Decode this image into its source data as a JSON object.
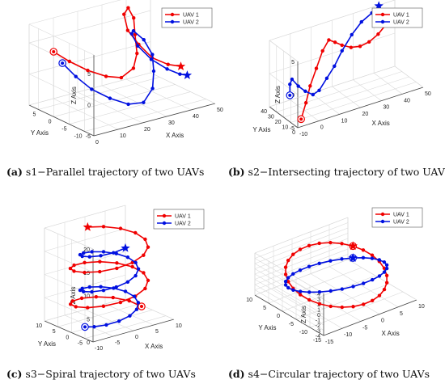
{
  "colors": {
    "uav1": "#f00000",
    "uav2": "#0010e0",
    "grid": "#d9d9d9",
    "axis": "#444444"
  },
  "captions": [
    {
      "letter": "(a)",
      "text": " s1−Parallel trajectory of two UAVs"
    },
    {
      "letter": "(b)",
      "text": " s2−Intersecting trajectory of two UAVs"
    },
    {
      "letter": "(c)",
      "text": " s3−Spiral trajectory of two UAVs"
    },
    {
      "letter": "(d)",
      "text": " s4−Circular trajectory of two UAVs"
    }
  ],
  "chart_data": [
    {
      "id": "s1",
      "type": "line",
      "projection": "3d",
      "xlabel": "X Axis",
      "ylabel": "Y Axis",
      "zlabel": "Z Axis",
      "x_ticks": [
        0,
        10,
        20,
        30,
        40,
        50
      ],
      "y_ticks": [
        -10,
        -5,
        0,
        5
      ],
      "z_ticks": [
        -5,
        0,
        5
      ],
      "xlim": [
        0,
        50
      ],
      "ylim": [
        -13,
        8
      ],
      "zlim": [
        -5,
        8
      ],
      "grid": true,
      "legend": "top-right",
      "series": [
        {
          "name": "UAV 1",
          "color": "#f00000",
          "start_marker": "circle",
          "end_marker": "star",
          "points": [
            [
              5,
              4,
              4
            ],
            [
              9,
              2,
              2.5
            ],
            [
              14,
              0,
              1
            ],
            [
              19,
              -2,
              0
            ],
            [
              24,
              -3,
              -0.5
            ],
            [
              29,
              -3,
              0.5
            ],
            [
              33,
              -1,
              2
            ],
            [
              36,
              2,
              4
            ],
            [
              38,
              4,
              6
            ],
            [
              37,
              5,
              7.5
            ],
            [
              34,
              4,
              7
            ],
            [
              33,
              2,
              5
            ],
            [
              35,
              0,
              3
            ],
            [
              38,
              -2,
              1
            ],
            [
              42,
              -4,
              0
            ],
            [
              46,
              -5,
              -0.5
            ]
          ]
        },
        {
          "name": "UAV 2",
          "color": "#0010e0",
          "start_marker": "circle",
          "end_marker": "star",
          "points": [
            [
              1,
              -2,
              4
            ],
            [
              4,
              -4,
              2
            ],
            [
              8,
              -6,
              0
            ],
            [
              13,
              -8,
              -1.5
            ],
            [
              18,
              -10,
              -2.5
            ],
            [
              23,
              -11,
              -2.5
            ],
            [
              28,
              -10,
              -1
            ],
            [
              31,
              -8,
              1
            ],
            [
              33,
              -6,
              3
            ],
            [
              32,
              -4,
              5
            ],
            [
              29,
              -3,
              6.5
            ],
            [
              27,
              -4,
              6.5
            ],
            [
              27,
              -6,
              5
            ],
            [
              30,
              -8,
              3
            ],
            [
              34,
              -10,
              1.5
            ],
            [
              38,
              -11,
              0.5
            ],
            [
              41,
              -11,
              0
            ]
          ]
        }
      ]
    },
    {
      "id": "s2",
      "type": "line",
      "projection": "3d",
      "xlabel": "X Axis",
      "ylabel": "Y Axis",
      "zlabel": "Z Axis",
      "x_ticks": [
        -10,
        0,
        10,
        20,
        30,
        40,
        50
      ],
      "y_ticks": [
        0,
        10,
        20,
        30,
        40
      ],
      "z_ticks": [
        -5,
        0,
        5
      ],
      "xlim": [
        -10,
        50
      ],
      "ylim": [
        0,
        40
      ],
      "zlim": [
        -5,
        5
      ],
      "grid": true,
      "legend": "top-right",
      "series": [
        {
          "name": "UAV 1",
          "color": "#f00000",
          "start_marker": "circle",
          "end_marker": "star",
          "points": [
            [
              -5,
              10,
              -5
            ],
            [
              -2,
              12,
              -3
            ],
            [
              1,
              15,
              -1
            ],
            [
              5,
              18,
              1
            ],
            [
              9,
              21,
              3
            ],
            [
              13,
              24,
              4
            ],
            [
              17,
              27,
              3
            ],
            [
              21,
              29,
              2
            ],
            [
              26,
              31,
              1
            ],
            [
              31,
              33,
              0.5
            ],
            [
              36,
              35,
              0.5
            ],
            [
              41,
              37,
              1
            ],
            [
              46,
              39,
              2
            ]
          ]
        },
        {
          "name": "UAV 2",
          "color": "#0010e0",
          "start_marker": "circle",
          "end_marker": "star",
          "points": [
            [
              -7,
              20,
              -2
            ],
            [
              -8,
              17,
              0
            ],
            [
              -8,
              14,
              1
            ],
            [
              -6,
              11,
              0
            ],
            [
              -3,
              10,
              -1
            ],
            [
              1,
              11,
              -2
            ],
            [
              5,
              14,
              -2
            ],
            [
              10,
              18,
              -1
            ],
            [
              15,
              22,
              0
            ],
            [
              20,
              26,
              1.5
            ],
            [
              26,
              30,
              3
            ],
            [
              32,
              34,
              4
            ],
            [
              38,
              37,
              4.5
            ],
            [
              42,
              39,
              5
            ]
          ]
        }
      ]
    },
    {
      "id": "s3",
      "type": "line",
      "projection": "3d",
      "xlabel": "X Axis",
      "ylabel": "Y Axis",
      "zlabel": "Z Axis",
      "x_ticks": [
        -10,
        -5,
        0,
        5,
        10
      ],
      "y_ticks": [
        -5,
        0,
        5,
        10
      ],
      "z_ticks": [
        0,
        5,
        10,
        15,
        20
      ],
      "xlim": [
        -10,
        10
      ],
      "ylim": [
        -8,
        10
      ],
      "zlim": [
        0,
        20
      ],
      "grid": true,
      "legend": "top-right",
      "series": [
        {
          "name": "UAV 1",
          "color": "#f00000",
          "start_marker": "circle",
          "end_marker": "star",
          "turns": 2.25,
          "center": [
            0,
            1
          ],
          "radius": 8,
          "z_range": [
            1,
            18
          ],
          "phase": 0
        },
        {
          "name": "UAV 2",
          "color": "#0010e0",
          "start_marker": "circle",
          "end_marker": "star",
          "turns": 2.25,
          "center": [
            0,
            1
          ],
          "radius": 6,
          "z_range": [
            0,
            17
          ],
          "phase": 3.1416
        }
      ]
    },
    {
      "id": "s4",
      "type": "line",
      "projection": "3d",
      "xlabel": "X Axis",
      "ylabel": "Y Axis",
      "zlabel": "Z Axis",
      "x_ticks": [
        -15,
        -10,
        -5,
        0,
        5,
        10
      ],
      "y_ticks": [
        -15,
        -10,
        -5,
        0,
        5,
        10
      ],
      "z_ticks": [
        -4,
        -3,
        -2,
        -1,
        0,
        1,
        2,
        3,
        4
      ],
      "xlim": [
        -15,
        10
      ],
      "ylim": [
        -15,
        10
      ],
      "zlim": [
        -4,
        4
      ],
      "grid": true,
      "legend": "top-right",
      "series": [
        {
          "name": "UAV 1",
          "color": "#f00000",
          "start_marker": "circle",
          "end_marker": "star",
          "circle": {
            "center": [
              -2,
              -2,
              0
            ],
            "radius": 11,
            "tilt": 2,
            "sweep": 1.0
          }
        },
        {
          "name": "UAV 2",
          "color": "#0010e0",
          "start_marker": "circle",
          "end_marker": "star",
          "circle": {
            "center": [
              -2,
              -2,
              0
            ],
            "radius": 11,
            "tilt": -2,
            "sweep": 1.0
          }
        }
      ]
    }
  ]
}
